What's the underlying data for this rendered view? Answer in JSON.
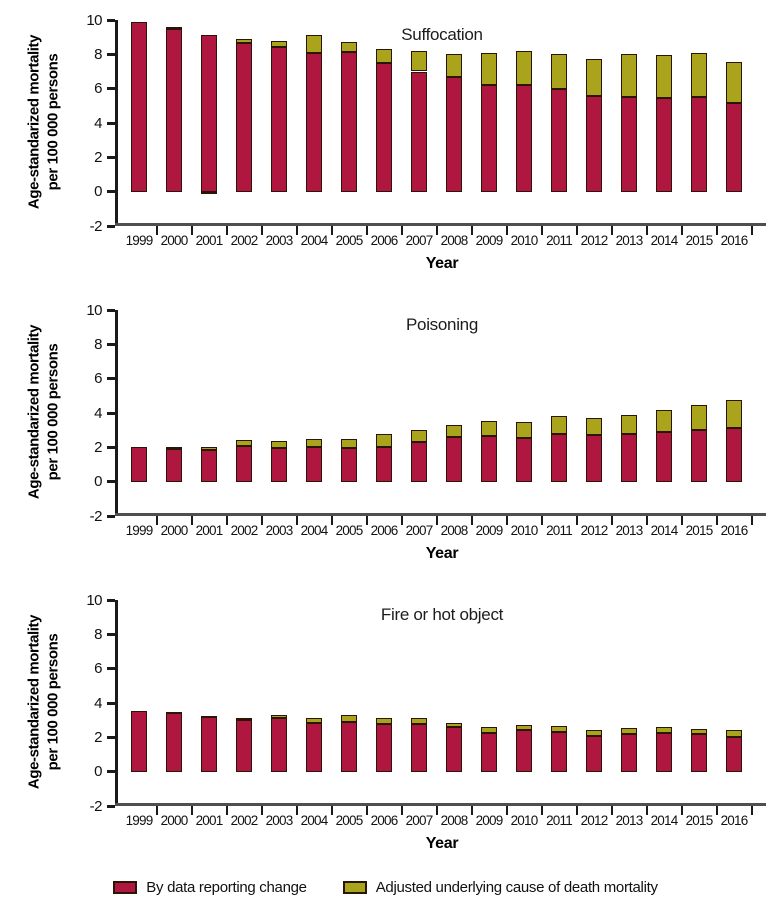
{
  "figure": {
    "y_axis_label_line1": "Age-standarized mortality",
    "y_axis_label_line2": "per 100 000 persons",
    "x_axis_label": "Year",
    "legend_items": [
      {
        "label": "By data reporting change",
        "color": "#af1740"
      },
      {
        "label": "Adjusted underlying cause of death mortality",
        "color": "#a9a41c"
      }
    ],
    "colors": {
      "bar_red": "#af1740",
      "bar_olive": "#a9a41c",
      "bar_border": "#2b1606",
      "axis": "#1a1a1a",
      "x_axis_line": "#4f4f4f"
    }
  },
  "chart_data": [
    {
      "type": "bar",
      "stacked": true,
      "title": "Suffocation",
      "xlabel": "Year",
      "ylabel": "Age-standarized mortality per 100 000 persons",
      "ylim": [
        -2,
        10
      ],
      "yticks": [
        10,
        8,
        6,
        4,
        2,
        0,
        -2
      ],
      "grid": false,
      "legend_position": "bottom",
      "categories": [
        "1999",
        "2000",
        "2001",
        "2002",
        "2003",
        "2004",
        "2005",
        "2006",
        "2007",
        "2008",
        "2009",
        "2010",
        "2011",
        "2012",
        "2013",
        "2014",
        "2015",
        "2016"
      ],
      "series": [
        {
          "name": "By data reporting change",
          "values": [
            9.9,
            9.45,
            9.1,
            8.65,
            8.45,
            8.1,
            8.15,
            7.5,
            7.0,
            6.7,
            6.2,
            6.2,
            6.0,
            5.6,
            5.5,
            5.45,
            5.5,
            5.15
          ]
        },
        {
          "name": "Adjusted underlying cause of death mortality",
          "values": [
            0,
            0.15,
            -0.15,
            0.25,
            0.3,
            1.0,
            0.55,
            0.8,
            1.2,
            1.3,
            1.85,
            2.0,
            2.0,
            2.1,
            2.5,
            2.5,
            2.6,
            2.4
          ]
        }
      ]
    },
    {
      "type": "bar",
      "stacked": true,
      "title": "Poisoning",
      "xlabel": "Year",
      "ylabel": "Age-standarized mortality per 100 000 persons",
      "ylim": [
        -2,
        10
      ],
      "yticks": [
        10,
        8,
        6,
        4,
        2,
        0,
        -2
      ],
      "grid": false,
      "legend_position": "bottom",
      "categories": [
        "1999",
        "2000",
        "2001",
        "2002",
        "2003",
        "2004",
        "2005",
        "2006",
        "2007",
        "2008",
        "2009",
        "2010",
        "2011",
        "2012",
        "2013",
        "2014",
        "2015",
        "2016"
      ],
      "series": [
        {
          "name": "By data reporting change",
          "values": [
            2.0,
            1.9,
            1.85,
            2.05,
            1.95,
            2.0,
            1.95,
            2.0,
            2.3,
            2.6,
            2.65,
            2.55,
            2.75,
            2.7,
            2.8,
            2.9,
            3.0,
            3.15
          ]
        },
        {
          "name": "Adjusted underlying cause of death mortality",
          "values": [
            0,
            0.1,
            0.15,
            0.4,
            0.4,
            0.5,
            0.55,
            0.8,
            0.7,
            0.7,
            0.9,
            0.9,
            1.05,
            1.0,
            1.1,
            1.25,
            1.45,
            1.6
          ]
        }
      ]
    },
    {
      "type": "bar",
      "stacked": true,
      "title": "Fire or hot object",
      "xlabel": "Year",
      "ylabel": "Age-standarized mortality per 100 000 persons",
      "ylim": [
        -2,
        10
      ],
      "yticks": [
        10,
        8,
        6,
        4,
        2,
        0,
        -2
      ],
      "grid": false,
      "legend_position": "bottom",
      "categories": [
        "1999",
        "2000",
        "2001",
        "2002",
        "2003",
        "2004",
        "2005",
        "2006",
        "2007",
        "2008",
        "2009",
        "2010",
        "2011",
        "2012",
        "2013",
        "2014",
        "2015",
        "2016"
      ],
      "series": [
        {
          "name": "By data reporting change",
          "values": [
            3.55,
            3.4,
            3.2,
            3.0,
            3.15,
            2.85,
            2.9,
            2.8,
            2.8,
            2.6,
            2.25,
            2.4,
            2.3,
            2.1,
            2.2,
            2.25,
            2.2,
            2.0
          ]
        },
        {
          "name": "Adjusted underlying cause of death mortality",
          "values": [
            0,
            0.05,
            0.05,
            0.1,
            0.15,
            0.25,
            0.4,
            0.3,
            0.35,
            0.25,
            0.35,
            0.3,
            0.35,
            0.3,
            0.35,
            0.35,
            0.3,
            0.4
          ]
        }
      ]
    }
  ]
}
